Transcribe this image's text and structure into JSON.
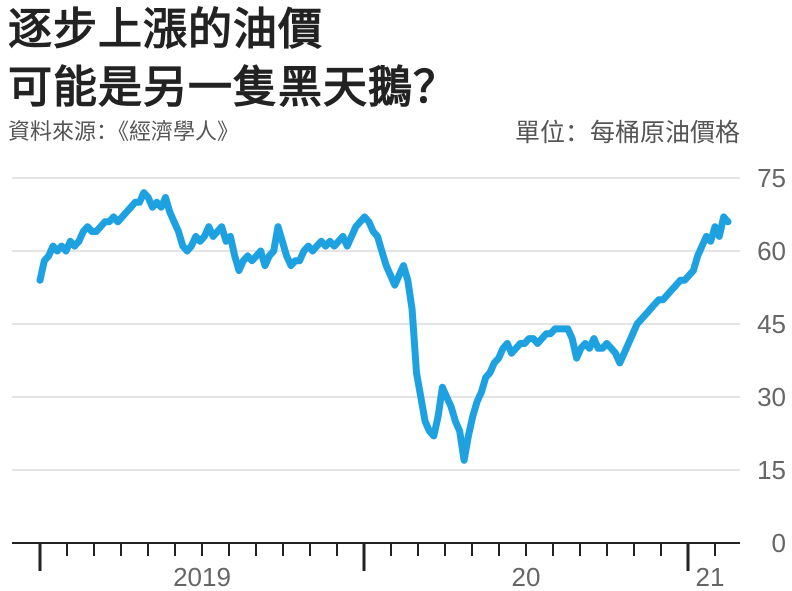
{
  "title_line1": "逐步上漲的油價",
  "title_line2": "可能是另一隻黑天鵝？",
  "source": "資料來源：《經濟學人》",
  "unit": "單位：每桶原油價格",
  "colors": {
    "line": "#1ea1e0",
    "grid": "#c8c8c8",
    "axis": "#222222",
    "text": "#666666"
  },
  "chart_data": {
    "type": "line",
    "ylim": [
      0,
      75
    ],
    "y_ticks": [
      "75",
      "60",
      "45",
      "30",
      "15",
      "0"
    ],
    "x_labels": [
      "2019",
      "20",
      "21"
    ],
    "grid": true,
    "series": [
      {
        "values": [
          54,
          58,
          59,
          61,
          60,
          61,
          60,
          62,
          61,
          62,
          64,
          65,
          64,
          64,
          65,
          66,
          66,
          67,
          66,
          67,
          68,
          69,
          70,
          70,
          72,
          71,
          69,
          70,
          69,
          71,
          68,
          66,
          64,
          61,
          60,
          61,
          63,
          62,
          63,
          65,
          63,
          64,
          65,
          62,
          63,
          59,
          56,
          58,
          59,
          58,
          59,
          60,
          57,
          59,
          60,
          65,
          62,
          59,
          57,
          58,
          58,
          60,
          61,
          60,
          61,
          62,
          61,
          62,
          61,
          62,
          63,
          61,
          63,
          65,
          66,
          67,
          66,
          64,
          63,
          60,
          57,
          55,
          53,
          55,
          57,
          54,
          48,
          35,
          30,
          25,
          23,
          22,
          26,
          32,
          30,
          28,
          25,
          23,
          17,
          22,
          26,
          29,
          31,
          34,
          35,
          37,
          38,
          40,
          41,
          39,
          40,
          41,
          41,
          42,
          42,
          41,
          42,
          43,
          43,
          44,
          44,
          44,
          44,
          42,
          38,
          40,
          41,
          40,
          42,
          40,
          40,
          41,
          40,
          39,
          37,
          39,
          41,
          43,
          45,
          46,
          47,
          48,
          49,
          50,
          50,
          51,
          52,
          53,
          54,
          54,
          55,
          56,
          59,
          61,
          63,
          62,
          65,
          63,
          67,
          66
        ]
      }
    ]
  }
}
